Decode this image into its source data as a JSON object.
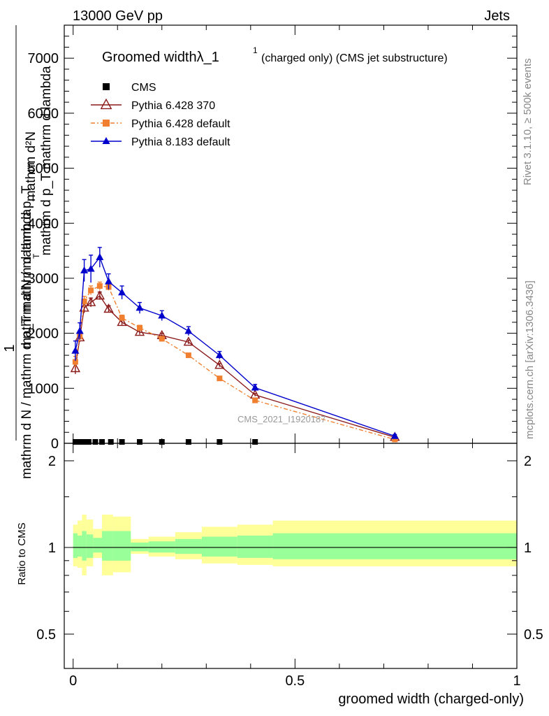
{
  "header": {
    "left": "13000 GeV pp",
    "right": "Jets"
  },
  "side": {
    "rivet": "Rivet 3.1.10, ≥ 500k events",
    "mcplots": "mcplots.cern.ch [arXiv:1306.3436]"
  },
  "chart_data": {
    "type": "line",
    "title_main": "Groomed widthλ_1",
    "title_sup": "1",
    "title_rest": "(charged only) (CMS jet substructure)",
    "watermark": "CMS_2021_I1920187",
    "ylabel_top": {
      "one": "1",
      "num": "mathrm d N / mathrm d p_T",
      "den": "mathrm d N / mathrm d p_T mathrm d lambda",
      "sub": "T"
    },
    "ylabel_overlap": {
      "num": "mathrm d²N",
      "den": "mathrm d p_T mathrm d lambda"
    },
    "ylabel_ratio": "Ratio to CMS",
    "xlabel": "groomed width (charged-only)",
    "xlim": [
      -0.02,
      1.0
    ],
    "ylim": [
      0,
      7600
    ],
    "ratio_ylim": [
      0.38,
      2.3
    ],
    "top_yticks": [
      {
        "v": 1000,
        "label": "1000"
      },
      {
        "v": 2000,
        "label": "2000"
      },
      {
        "v": 3000,
        "label": "3000"
      },
      {
        "v": 4000,
        "label": "4000"
      },
      {
        "v": 5000,
        "label": "5000"
      },
      {
        "v": 6000,
        "label": "6000"
      },
      {
        "v": 7000,
        "label": "7000"
      },
      {
        "v": 0,
        "label": "0"
      }
    ],
    "ratio_yticks": [
      {
        "v": 0.5,
        "label": "0.5"
      },
      {
        "v": 1,
        "label": "1"
      },
      {
        "v": 2,
        "label": "2"
      }
    ],
    "xticks": [
      {
        "v": 0,
        "label": "0"
      },
      {
        "v": 0.5,
        "label": "0.5"
      },
      {
        "v": 1,
        "label": "1"
      }
    ],
    "legend": [
      {
        "name": "CMS",
        "color": "#000000",
        "marker": "square"
      },
      {
        "name": "Pythia 6.428 370",
        "color": "#8b1a1a",
        "marker": "open-triangle"
      },
      {
        "name": "Pythia 6.428 default",
        "color": "#f08030",
        "marker": "square"
      },
      {
        "name": "Pythia 8.183 default",
        "color": "#0000cc",
        "marker": "triangle"
      }
    ],
    "series": [
      {
        "name": "CMS",
        "x": [
          0.005,
          0.015,
          0.025,
          0.035,
          0.05,
          0.065,
          0.085,
          0.11,
          0.15,
          0.2,
          0.26,
          0.33,
          0.41
        ],
        "values": [
          10,
          10,
          10,
          10,
          10,
          10,
          10,
          10,
          10,
          10,
          10,
          10,
          10
        ]
      },
      {
        "name": "Pythia 6.428 370",
        "x": [
          0.005,
          0.015,
          0.025,
          0.04,
          0.06,
          0.08,
          0.11,
          0.15,
          0.2,
          0.26,
          0.33,
          0.41,
          0.725
        ],
        "values": [
          1360,
          1920,
          2460,
          2560,
          2680,
          2440,
          2200,
          2020,
          1960,
          1840,
          1420,
          880,
          110
        ]
      },
      {
        "name": "Pythia 6.428 default",
        "x": [
          0.005,
          0.015,
          0.025,
          0.04,
          0.06,
          0.08,
          0.11,
          0.15,
          0.2,
          0.26,
          0.33,
          0.41,
          0.725
        ],
        "values": [
          1480,
          1940,
          2580,
          2780,
          2860,
          2840,
          2280,
          2100,
          1900,
          1600,
          1180,
          780,
          70
        ]
      },
      {
        "name": "Pythia 8.183 default",
        "x": [
          0.005,
          0.015,
          0.025,
          0.04,
          0.06,
          0.08,
          0.11,
          0.15,
          0.2,
          0.26,
          0.33,
          0.41,
          0.725
        ],
        "values": [
          1680,
          2040,
          3140,
          3170,
          3380,
          2940,
          2740,
          2460,
          2320,
          2040,
          1600,
          1010,
          130
        ]
      }
    ],
    "errors_p8": [
      180,
      150,
      200,
      250,
      180,
      140,
      120,
      100,
      90,
      80,
      70,
      60,
      30
    ],
    "errors_p6": [
      100,
      80,
      90,
      80,
      70,
      60,
      50,
      45,
      40,
      35,
      30,
      25,
      10
    ],
    "ratio_bands": {
      "edges": [
        0,
        0.01,
        0.02,
        0.03,
        0.045,
        0.065,
        0.09,
        0.13,
        0.17,
        0.23,
        0.29,
        0.37,
        0.45,
        1.0
      ],
      "inner_hi": [
        1.12,
        1.1,
        1.14,
        1.11,
        1.08,
        1.14,
        1.14,
        1.04,
        1.05,
        1.07,
        1.09,
        1.1,
        1.12
      ],
      "inner_lo": [
        0.92,
        0.93,
        0.9,
        0.92,
        0.96,
        0.9,
        0.9,
        0.97,
        0.96,
        0.95,
        0.93,
        0.92,
        0.91
      ],
      "outer_hi": [
        1.2,
        1.24,
        1.3,
        1.25,
        1.16,
        1.3,
        1.28,
        1.07,
        1.09,
        1.13,
        1.18,
        1.2,
        1.24
      ],
      "outer_lo": [
        0.86,
        0.85,
        0.8,
        0.86,
        0.92,
        0.8,
        0.82,
        0.95,
        0.93,
        0.91,
        0.88,
        0.87,
        0.86
      ]
    }
  }
}
